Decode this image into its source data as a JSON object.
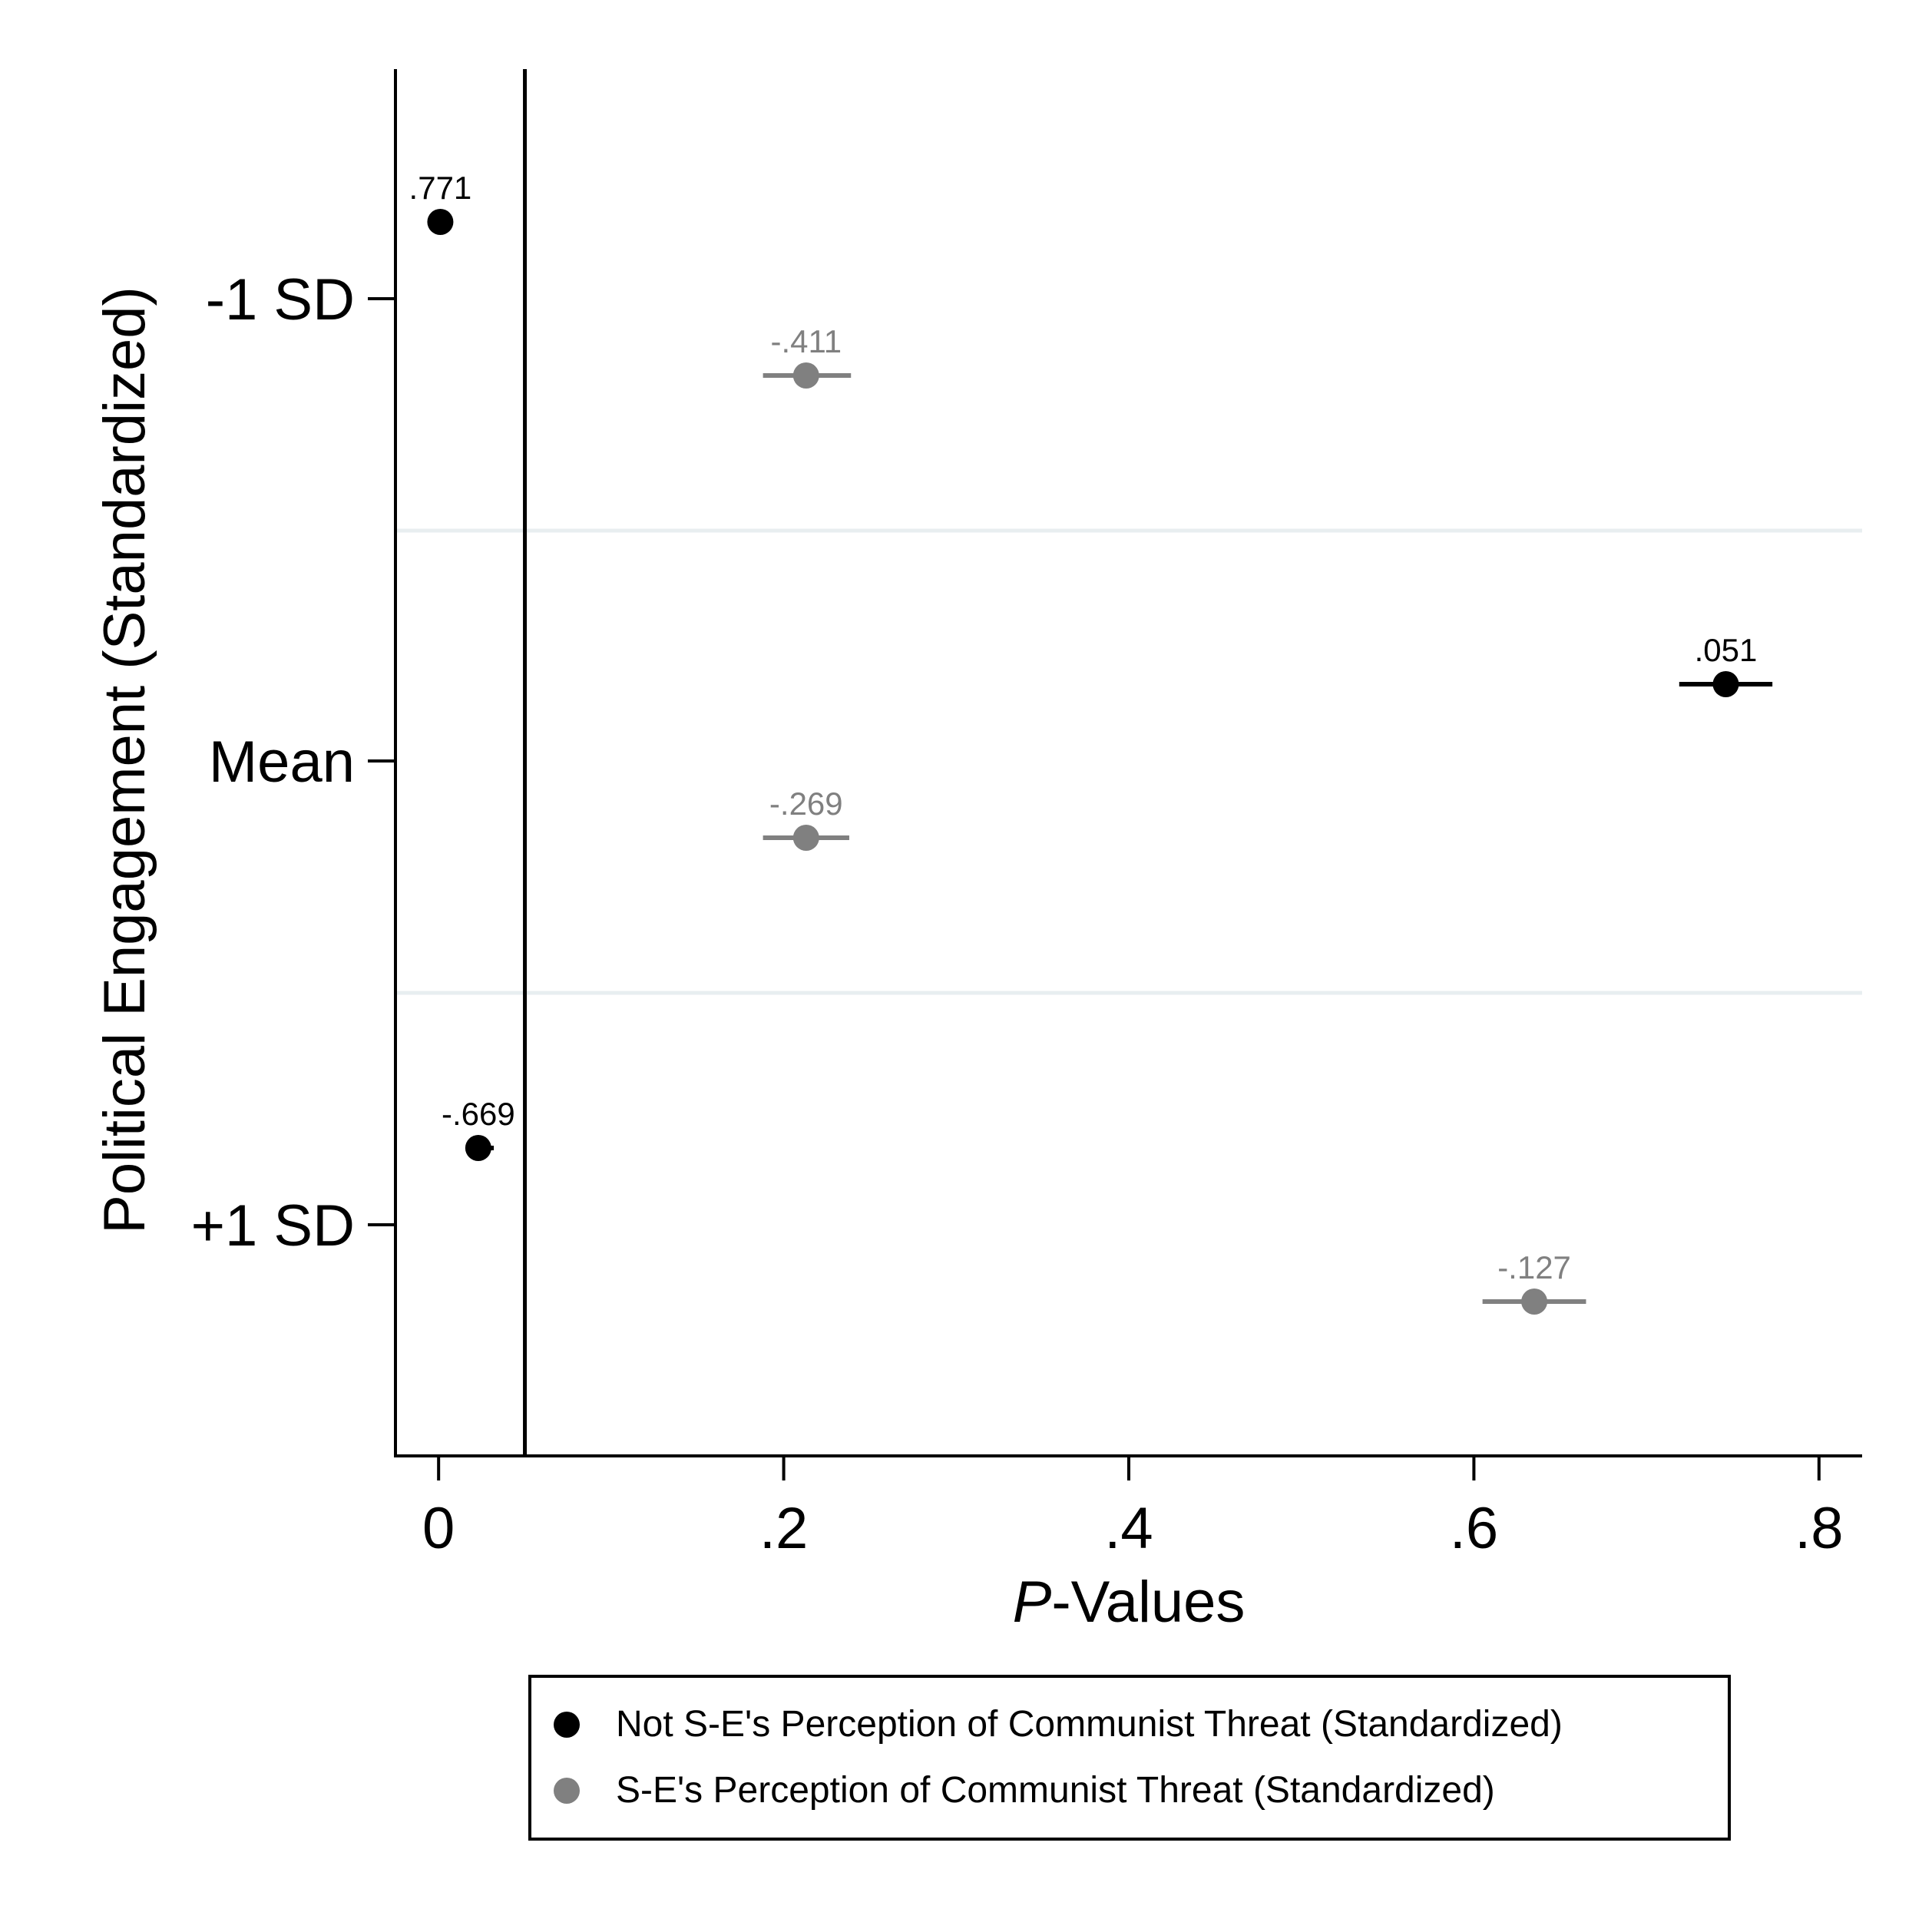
{
  "chart_data": {
    "type": "scatter",
    "xlabel_italic": "P",
    "xlabel_rest": "-Values",
    "ylabel": "Political Engagement (Standardized)",
    "xlim": [
      -0.025,
      0.825
    ],
    "x_ticks": [
      {
        "value": 0,
        "label": "0"
      },
      {
        "value": 0.2,
        "label": ".2"
      },
      {
        "value": 0.4,
        "label": ".4"
      },
      {
        "value": 0.6,
        "label": ".6"
      },
      {
        "value": 0.8,
        "label": ".8"
      }
    ],
    "y_ticks": [
      "-1 SD",
      "Mean",
      "+1 SD"
    ],
    "reference_line_x": 0.05,
    "legend_position": "bottom",
    "series": [
      {
        "name": "Not S-E's Perception of Communist Threat (Standardized)",
        "color": "#000000",
        "points": [
          {
            "group": "-1 SD",
            "x": 0.001,
            "ci": [
              0.001,
              0.001
            ],
            "label": ".771"
          },
          {
            "group": "Mean",
            "x": 0.746,
            "ci": [
              0.719,
              0.773
            ],
            "label": ".051"
          },
          {
            "group": "+1 SD",
            "x": 0.023,
            "ci": [
              0.019,
              0.032
            ],
            "label": "-.669"
          }
        ]
      },
      {
        "name": "S-E's Perception of Communist Threat (Standardized)",
        "color": "#808080",
        "points": [
          {
            "group": "-1 SD",
            "x": 0.213,
            "ci": [
              0.188,
              0.239
            ],
            "label": "-.411"
          },
          {
            "group": "Mean",
            "x": 0.213,
            "ci": [
              0.188,
              0.238
            ],
            "label": "-.269"
          },
          {
            "group": "+1 SD",
            "x": 0.635,
            "ci": [
              0.605,
              0.665
            ],
            "label": "-.127"
          }
        ]
      }
    ]
  }
}
